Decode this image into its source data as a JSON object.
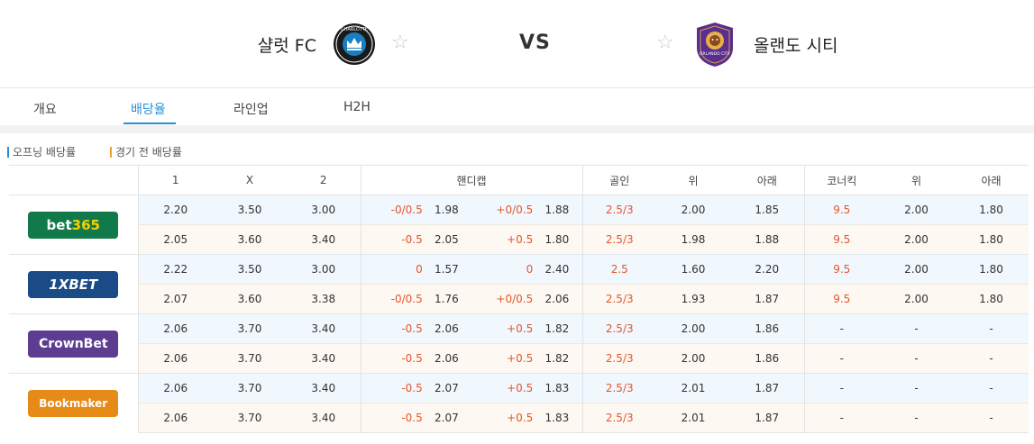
{
  "match": {
    "home": "샬럿 FC",
    "away": "올랜도 시티",
    "vs": "VS",
    "home_logo_text": "CHARLOTTE",
    "away_logo_text": "ORLANDO CITY",
    "star": "☆"
  },
  "tabs": [
    "개요",
    "배당율",
    "라인업",
    "H2H"
  ],
  "legend": {
    "open": "오프닝 배당률",
    "pre": "경기 전 배당률",
    "open_color": "#2a8fd4",
    "pre_color": "#f0a030"
  },
  "headers": [
    "1",
    "X",
    "2",
    "핸디캡",
    "골인",
    "위",
    "아래",
    "코너킥",
    "위",
    "아래"
  ],
  "bookmakers": [
    {
      "name": "bet365",
      "rows": [
        [
          "2.20",
          "3.50",
          "3.00",
          "-0/0.5",
          "1.98",
          "+0/0.5",
          "1.88",
          "2.5/3",
          "2.00",
          "1.85",
          "9.5",
          "2.00",
          "1.80"
        ],
        [
          "2.05",
          "3.60",
          "3.40",
          "-0.5",
          "2.05",
          "+0.5",
          "1.80",
          "2.5/3",
          "1.98",
          "1.88",
          "9.5",
          "2.00",
          "1.80"
        ]
      ]
    },
    {
      "name": "1XBET",
      "rows": [
        [
          "2.22",
          "3.50",
          "3.00",
          "0",
          "1.57",
          "0",
          "2.40",
          "2.5",
          "1.60",
          "2.20",
          "9.5",
          "2.00",
          "1.80"
        ],
        [
          "2.07",
          "3.60",
          "3.38",
          "-0/0.5",
          "1.76",
          "+0/0.5",
          "2.06",
          "2.5/3",
          "1.93",
          "1.87",
          "9.5",
          "2.00",
          "1.80"
        ]
      ]
    },
    {
      "name": "CrownBet",
      "rows": [
        [
          "2.06",
          "3.70",
          "3.40",
          "-0.5",
          "2.06",
          "+0.5",
          "1.82",
          "2.5/3",
          "2.00",
          "1.86",
          "-",
          "-",
          "-"
        ],
        [
          "2.06",
          "3.70",
          "3.40",
          "-0.5",
          "2.06",
          "+0.5",
          "1.82",
          "2.5/3",
          "2.00",
          "1.86",
          "-",
          "-",
          "-"
        ]
      ]
    },
    {
      "name": "Bookmaker",
      "rows": [
        [
          "2.06",
          "3.70",
          "3.40",
          "-0.5",
          "2.07",
          "+0.5",
          "1.83",
          "2.5/3",
          "2.01",
          "1.87",
          "-",
          "-",
          "-"
        ],
        [
          "2.06",
          "3.70",
          "3.40",
          "-0.5",
          "2.07",
          "+0.5",
          "1.83",
          "2.5/3",
          "2.01",
          "1.87",
          "-",
          "-",
          "-"
        ]
      ]
    }
  ]
}
